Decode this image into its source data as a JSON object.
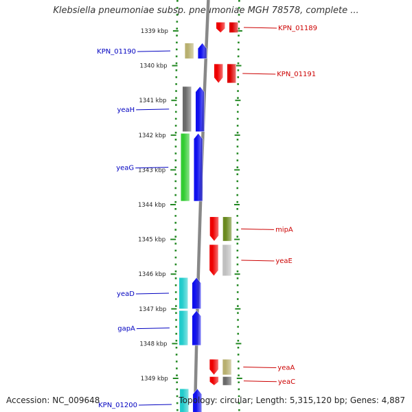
{
  "title": "Klebsiella pneumoniae subsp. pneumoniae MGH 78578, complete ...",
  "accession": "Accession: NC_009648",
  "topology": "Topology: circular; Length: 5,315,120 bp; Genes: 4,887",
  "colors": {
    "forward_label": "#0000c0",
    "reverse_label": "#cc0000",
    "backbone": "#888888",
    "ruler": "#228822"
  },
  "ticks": [
    {
      "label": "1339 kbp",
      "kbp": 1339
    },
    {
      "label": "1340 kbp",
      "kbp": 1340
    },
    {
      "label": "1341 kbp",
      "kbp": 1341
    },
    {
      "label": "1342 kbp",
      "kbp": 1342
    },
    {
      "label": "1343 kbp",
      "kbp": 1343
    },
    {
      "label": "1344 kbp",
      "kbp": 1344
    },
    {
      "label": "1345 kbp",
      "kbp": 1345
    },
    {
      "label": "1346 kbp",
      "kbp": 1346
    },
    {
      "label": "1347 kbp",
      "kbp": 1347
    },
    {
      "label": "1348 kbp",
      "kbp": 1348
    },
    {
      "label": "1349 kbp",
      "kbp": 1349
    }
  ],
  "genes": [
    {
      "name": "KPN_01189",
      "strand": "reverse",
      "start": 1338.75,
      "end": 1339.05,
      "cog": "#dd0000"
    },
    {
      "name": "KPN_01190",
      "strand": "forward",
      "start": 1339.35,
      "end": 1339.8,
      "cog": "#b8b070"
    },
    {
      "name": "KPN_01191",
      "strand": "reverse",
      "start": 1339.95,
      "end": 1340.5,
      "cog": "#dd0000"
    },
    {
      "name": "yeaH",
      "strand": "forward",
      "start": 1340.6,
      "end": 1341.9,
      "cog": "#6a6a6a"
    },
    {
      "name": "yeaG",
      "strand": "forward",
      "start": 1341.95,
      "end": 1343.9,
      "cog": "#33cc33"
    },
    {
      "name": "mipA",
      "strand": "reverse",
      "start": 1344.35,
      "end": 1345.05,
      "cog": "#6a8a20"
    },
    {
      "name": "yeaE",
      "strand": "reverse",
      "start": 1345.15,
      "end": 1346.05,
      "cog": "#c0c0c0"
    },
    {
      "name": "yeaD",
      "strand": "forward",
      "start": 1346.1,
      "end": 1347.0,
      "cog": "#22cccc"
    },
    {
      "name": "gapA",
      "strand": "forward",
      "start": 1347.05,
      "end": 1348.05,
      "cog": "#22cccc"
    },
    {
      "name": "yeaA",
      "strand": "reverse",
      "start": 1348.45,
      "end": 1348.9,
      "cog": "#b8b070"
    },
    {
      "name": "yeaC",
      "strand": "reverse",
      "start": 1348.95,
      "end": 1349.2,
      "cog": "#6a6a6a"
    },
    {
      "name": "KPN_01200",
      "strand": "forward",
      "start": 1349.3,
      "end": 1350.2,
      "cog": "#22cccc"
    }
  ]
}
